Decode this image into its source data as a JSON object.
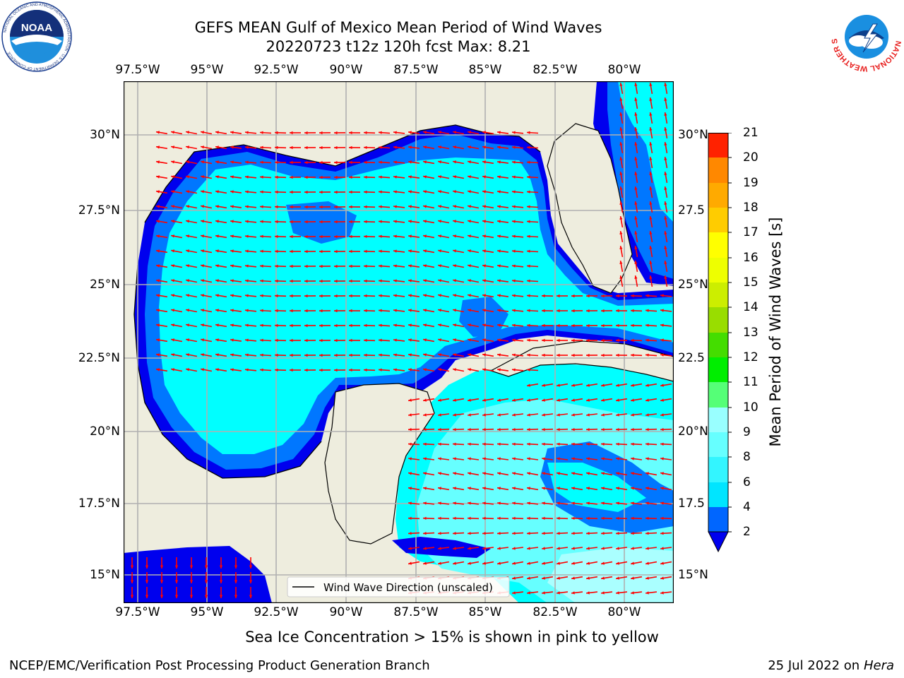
{
  "title": {
    "line1": "GEFS MEAN Gulf of Mexico Mean Period of Wind Waves",
    "line2": "20220723 t12z 120h fcst   Max: 8.21"
  },
  "lon_labels": [
    "97.5°W",
    "95°W",
    "92.5°W",
    "90°W",
    "87.5°W",
    "85°W",
    "82.5°W",
    "80°W"
  ],
  "lat_labels": [
    "30°N",
    "27.5°N",
    "25°N",
    "22.5°N",
    "20°N",
    "17.5°N",
    "15°N"
  ],
  "lat_labels_right": [
    "30°N",
    "27.5",
    "25°N",
    "22.5",
    "20°N",
    "17.5",
    "15°N"
  ],
  "legend_label": "Wind Wave Direction (unscaled)",
  "colorbar": {
    "label": "Mean Period of Wind Waves [s]",
    "ticks": [
      "2",
      "4",
      "6",
      "8",
      "9",
      "10",
      "11",
      "12",
      "13",
      "14",
      "15",
      "16",
      "17",
      "18",
      "19",
      "20",
      "21"
    ],
    "colors": [
      "#0066ff",
      "#00e5ff",
      "#33f5ff",
      "#66ffff",
      "#99ffff",
      "#55ff77",
      "#00ee00",
      "#44dd00",
      "#99dd00",
      "#ccee00",
      "#eeff00",
      "#ffff00",
      "#ffcc00",
      "#ffaa00",
      "#ff8800",
      "#ff5500",
      "#ff2200",
      "#ff0000"
    ],
    "under_color": "#0000ee"
  },
  "colors": {
    "land": "#eeedde",
    "deep_blue": "#0000ee",
    "mid_blue": "#0077ff",
    "cyan": "#00ffff",
    "light_cyan": "#66ffff",
    "pale_cyan": "#aaffff",
    "arrow": "#ff0000",
    "grid": "#b0b0b0"
  },
  "subtitle": "Sea Ice Concentration > 15% is shown in pink to yellow",
  "footer_left": "NCEP/EMC/Verification Post Processing Product Generation Branch",
  "footer_right_date": "25 Jul 2022 on ",
  "footer_right_host": "Hera",
  "logos": {
    "noaa": "NOAA",
    "nws_ring": "NATIONAL WEATHER SERVICE"
  }
}
